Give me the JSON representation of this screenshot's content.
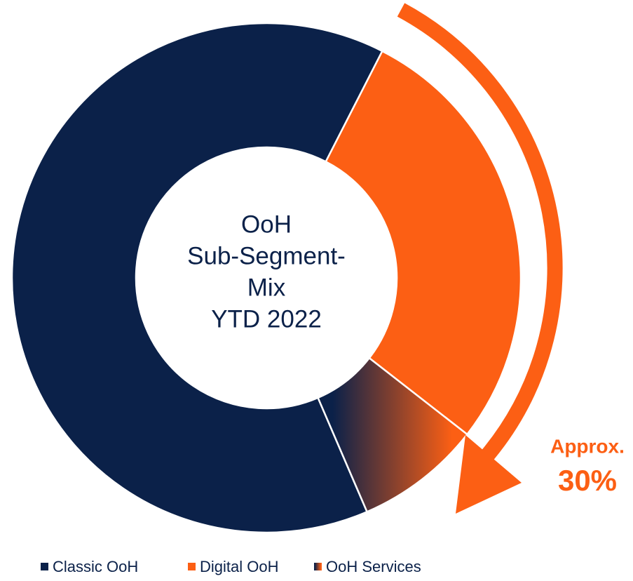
{
  "chart_data": {
    "type": "donut",
    "center_text": [
      "OoH",
      "Sub-Segment-",
      "Mix",
      "YTD 2022"
    ],
    "categories": [
      "Classic OoH",
      "Digital OoH",
      "OoH Services"
    ],
    "values": [
      64,
      28,
      8
    ],
    "colors": [
      "#0b2149",
      "#fc5f14",
      [
        "#0b2149",
        "#fc5f14"
      ]
    ],
    "annotation": [
      "Approx.",
      "30%"
    ],
    "legend": "bottom"
  }
}
